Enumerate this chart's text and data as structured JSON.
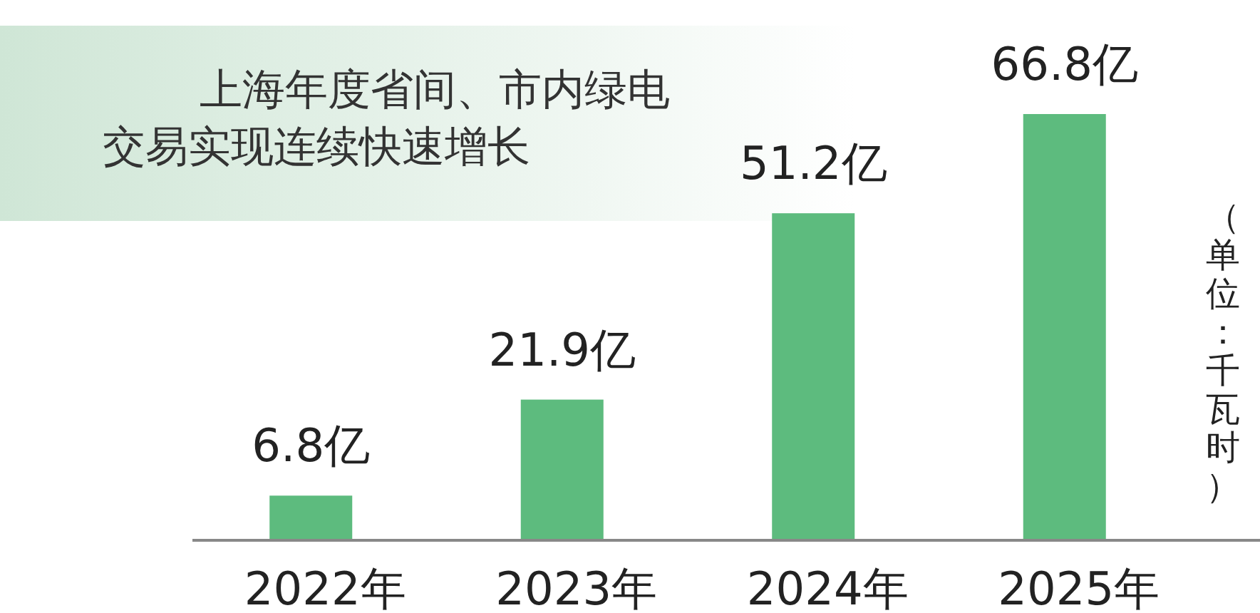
{
  "chart_data": {
    "type": "bar",
    "title": "上海年度省间、市内绿电交易实现连续快速增长",
    "categories": [
      "2022年",
      "2023年",
      "2024年",
      "2025年"
    ],
    "values": [
      6.8,
      21.9,
      51.2,
      66.8
    ],
    "value_labels": [
      "6.8亿",
      "21.9亿",
      "51.2亿",
      "66.8亿"
    ],
    "color": "#5dbb7e",
    "annotations": [
      "（单位：千瓦时）"
    ]
  }
}
